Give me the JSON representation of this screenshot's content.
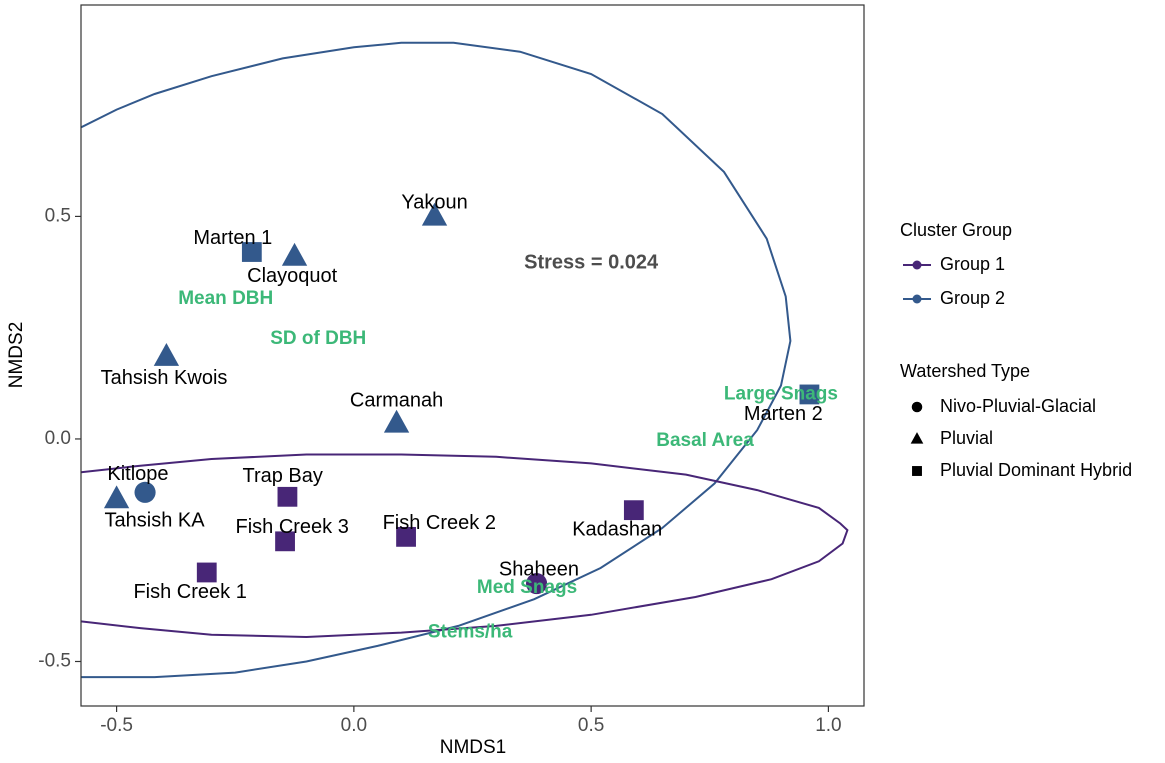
{
  "chart_data": {
    "type": "scatter",
    "xlabel": "NMDS1",
    "ylabel": "NMDS2",
    "xlim": [
      -0.575,
      1.075
    ],
    "ylim": [
      -0.6,
      0.975
    ],
    "x_ticks": [
      {
        "value": -0.5,
        "label": "-0.5"
      },
      {
        "value": 0.0,
        "label": "0.0"
      },
      {
        "value": 0.5,
        "label": "0.5"
      },
      {
        "value": 1.0,
        "label": "1.0"
      }
    ],
    "y_ticks": [
      {
        "value": -0.5,
        "label": "-0.5"
      },
      {
        "value": 0.0,
        "label": "0.0"
      },
      {
        "value": 0.5,
        "label": "0.5"
      }
    ],
    "grid": false,
    "annotation": "Stress = 0.024",
    "annotation_pos": [
      0.5,
      0.395
    ],
    "colors": {
      "group1": "#482677",
      "group2": "#33598c",
      "vector": "#3cb878"
    },
    "legends": {
      "cluster": {
        "title": "Cluster Group",
        "entries": [
          {
            "label": "Group 1",
            "group": "group1"
          },
          {
            "label": "Group 2",
            "group": "group2"
          }
        ]
      },
      "watershed": {
        "title": "Watershed Type",
        "entries": [
          {
            "label": "Nivo-Pluvial-Glacial",
            "shape": "circle"
          },
          {
            "label": "Pluvial",
            "shape": "triangle"
          },
          {
            "label": "Pluvial Dominant Hybrid",
            "shape": "square"
          }
        ]
      }
    },
    "points": [
      {
        "name": "Yakoun",
        "x": 0.17,
        "y": 0.5,
        "shape": "triangle",
        "group": "group2",
        "lx": 0.17,
        "ly": 0.53
      },
      {
        "name": "Marten 1",
        "x": -0.215,
        "y": 0.42,
        "shape": "square",
        "group": "group2",
        "lx": -0.255,
        "ly": 0.45
      },
      {
        "name": "Clayoquot",
        "x": -0.125,
        "y": 0.41,
        "shape": "triangle",
        "group": "group2",
        "lx": -0.13,
        "ly": 0.365
      },
      {
        "name": "Tahsish Kwois",
        "x": -0.395,
        "y": 0.185,
        "shape": "triangle",
        "group": "group2",
        "lx": -0.4,
        "ly": 0.135
      },
      {
        "name": "Carmanah",
        "x": 0.09,
        "y": 0.035,
        "shape": "triangle",
        "group": "group2",
        "lx": 0.09,
        "ly": 0.085
      },
      {
        "name": "Marten 2",
        "x": 0.96,
        "y": 0.1,
        "shape": "square",
        "group": "group2",
        "lx": 0.905,
        "ly": 0.055
      },
      {
        "name": "Kitlope",
        "x": -0.44,
        "y": -0.12,
        "shape": "circle",
        "group": "group2",
        "lx": -0.455,
        "ly": -0.08
      },
      {
        "name": "Tahsish KA",
        "x": -0.5,
        "y": -0.135,
        "shape": "triangle",
        "group": "group2",
        "lx": -0.42,
        "ly": -0.185
      },
      {
        "name": "Trap Bay",
        "x": -0.14,
        "y": -0.13,
        "shape": "square",
        "group": "group1",
        "lx": -0.15,
        "ly": -0.085
      },
      {
        "name": "Fish Creek 3",
        "x": -0.145,
        "y": -0.23,
        "shape": "square",
        "group": "group1",
        "lx": -0.13,
        "ly": -0.2
      },
      {
        "name": "Fish Creek 2",
        "x": 0.11,
        "y": -0.22,
        "shape": "square",
        "group": "group1",
        "lx": 0.18,
        "ly": -0.19
      },
      {
        "name": "Kadashan",
        "x": 0.59,
        "y": -0.16,
        "shape": "square",
        "group": "group1",
        "lx": 0.555,
        "ly": -0.205
      },
      {
        "name": "Shaheen",
        "x": 0.385,
        "y": -0.325,
        "shape": "circle",
        "group": "group1",
        "lx": 0.39,
        "ly": -0.295
      },
      {
        "name": "Fish Creek 1",
        "x": -0.31,
        "y": -0.3,
        "shape": "square",
        "group": "group1",
        "lx": -0.345,
        "ly": -0.345
      }
    ],
    "vectors": [
      {
        "name": "Mean DBH",
        "x": -0.27,
        "y": 0.315
      },
      {
        "name": "SD of DBH",
        "x": -0.075,
        "y": 0.225
      },
      {
        "name": "Large Snags",
        "x": 0.9,
        "y": 0.1
      },
      {
        "name": "Basal Area",
        "x": 0.74,
        "y": -0.005
      },
      {
        "name": "Med Snags",
        "x": 0.365,
        "y": -0.335
      },
      {
        "name": "Stems/ha",
        "x": 0.245,
        "y": -0.435
      }
    ],
    "ellipses": [
      {
        "group": "group2",
        "points": [
          [
            -0.575,
            0.7
          ],
          [
            -0.5,
            0.74
          ],
          [
            -0.42,
            0.775
          ],
          [
            -0.3,
            0.815
          ],
          [
            -0.15,
            0.855
          ],
          [
            0.0,
            0.88
          ],
          [
            0.1,
            0.89
          ],
          [
            0.21,
            0.89
          ],
          [
            0.35,
            0.87
          ],
          [
            0.5,
            0.82
          ],
          [
            0.65,
            0.73
          ],
          [
            0.78,
            0.6
          ],
          [
            0.87,
            0.45
          ],
          [
            0.91,
            0.32
          ],
          [
            0.92,
            0.22
          ],
          [
            0.9,
            0.12
          ],
          [
            0.85,
            0.02
          ],
          [
            0.76,
            -0.1
          ],
          [
            0.65,
            -0.2
          ],
          [
            0.52,
            -0.29
          ],
          [
            0.38,
            -0.36
          ],
          [
            0.22,
            -0.42
          ],
          [
            0.05,
            -0.465
          ],
          [
            -0.1,
            -0.5
          ],
          [
            -0.25,
            -0.525
          ],
          [
            -0.42,
            -0.535
          ],
          [
            -0.575,
            -0.535
          ]
        ]
      },
      {
        "group": "group1",
        "points": [
          [
            -0.575,
            -0.075
          ],
          [
            -0.45,
            -0.06
          ],
          [
            -0.3,
            -0.045
          ],
          [
            -0.1,
            -0.035
          ],
          [
            0.1,
            -0.035
          ],
          [
            0.3,
            -0.04
          ],
          [
            0.5,
            -0.055
          ],
          [
            0.7,
            -0.08
          ],
          [
            0.85,
            -0.115
          ],
          [
            0.98,
            -0.155
          ],
          [
            1.025,
            -0.19
          ],
          [
            1.04,
            -0.205
          ],
          [
            1.03,
            -0.235
          ],
          [
            0.98,
            -0.275
          ],
          [
            0.88,
            -0.315
          ],
          [
            0.72,
            -0.355
          ],
          [
            0.5,
            -0.395
          ],
          [
            0.3,
            -0.42
          ],
          [
            0.1,
            -0.435
          ],
          [
            -0.1,
            -0.445
          ],
          [
            -0.3,
            -0.44
          ],
          [
            -0.45,
            -0.425
          ],
          [
            -0.575,
            -0.41
          ]
        ]
      }
    ]
  }
}
